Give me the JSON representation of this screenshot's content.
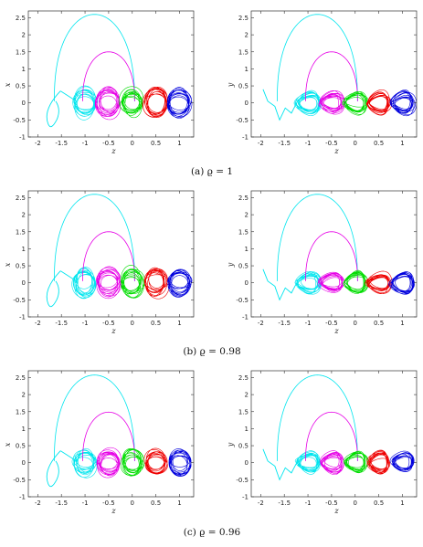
{
  "chart_data": {
    "type": "line",
    "rows": [
      {
        "caption": "(a) ϱ = 1"
      },
      {
        "caption": "(b) ϱ = 0.98"
      },
      {
        "caption": "(c) ϱ = 0.96"
      }
    ],
    "panels": [
      {
        "xlabel": "z",
        "ylabel": "x"
      },
      {
        "xlabel": "z",
        "ylabel": "y"
      }
    ],
    "xlim": [
      -2.2,
      1.3
    ],
    "ylim": [
      -1,
      2.7
    ],
    "xticks": [
      "-2",
      "-1.5",
      "-1",
      "-0.5",
      "0",
      "0.5",
      "1"
    ],
    "yticks": [
      "-1",
      "-0.5",
      "0",
      "0.5",
      "1",
      "1.5",
      "2",
      "2.5"
    ],
    "series": [
      {
        "color": "#00e5ee",
        "center_z": -1.0,
        "arc_top": 2.6,
        "arc_from": -1.65,
        "arc_to": 0.05
      },
      {
        "color": "#e600e6",
        "center_z": -0.5,
        "arc_top": 1.5,
        "arc_from": -1.05,
        "arc_to": 0.05
      },
      {
        "color": "#00dd00",
        "center_z": 0.0
      },
      {
        "color": "#ee0000",
        "center_z": 0.5
      },
      {
        "color": "#0000dd",
        "center_z": 1.0
      }
    ]
  }
}
